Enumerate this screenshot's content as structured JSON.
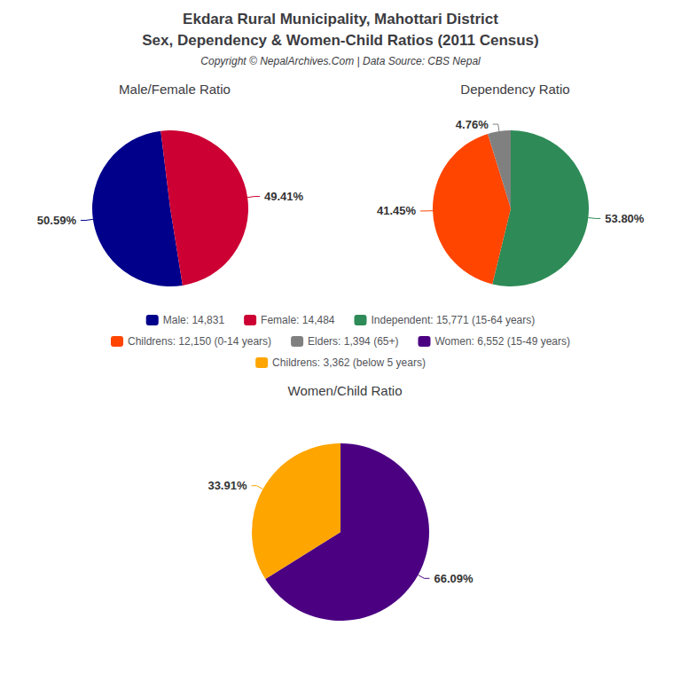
{
  "title": "Ekdara Rural Municipality, Mahottari District",
  "subtitle": "Sex, Dependency & Women-Child Ratios (2011 Census)",
  "annotations": [
    "Copyright © NepalArchives.Com | Data Source: CBS Nepal"
  ],
  "legend": "center",
  "chart_data": [
    {
      "type": "pie",
      "title": "Male/Female Ratio",
      "categories": [
        "Male: 14,831",
        "Female: 14,484"
      ],
      "values": [
        50.59,
        49.41
      ],
      "value_labels": [
        "50.59%",
        "49.41%"
      ],
      "colors": [
        "#00008B",
        "#CC0033"
      ],
      "data_labels": true
    },
    {
      "type": "pie",
      "title": "Dependency Ratio",
      "categories": [
        "Independent: 15,771 (15-64 years)",
        "Childrens: 12,150 (0-14 years)",
        "Elders: 1,394 (65+)"
      ],
      "values": [
        53.8,
        41.45,
        4.76
      ],
      "value_labels": [
        "53.80%",
        "41.45%",
        "4.76%"
      ],
      "colors": [
        "#2E8B57",
        "#FF4500",
        "#808080"
      ],
      "data_labels": true
    },
    {
      "type": "pie",
      "title": "Women/Child Ratio",
      "categories": [
        "Women: 6,552 (15-49 years)",
        "Childrens: 3,362 (below 5 years)"
      ],
      "values": [
        66.09,
        33.91
      ],
      "value_labels": [
        "66.09%",
        "33.91%"
      ],
      "colors": [
        "#4B0082",
        "#FFA500"
      ],
      "data_labels": true
    }
  ]
}
